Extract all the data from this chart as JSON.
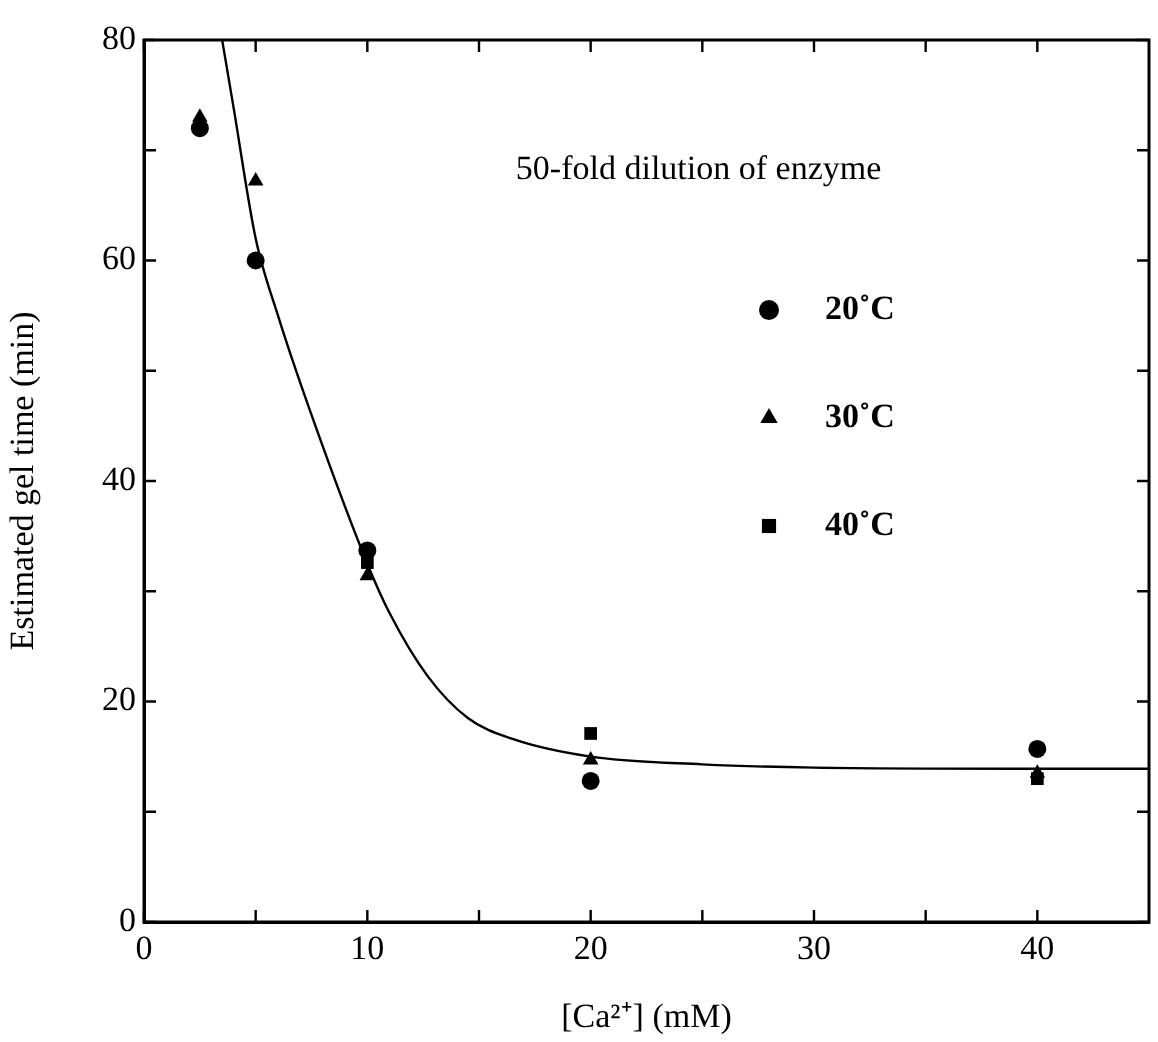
{
  "chart_data": {
    "type": "scatter",
    "xlabel": "[Ca²⁺] (mM)",
    "ylabel": "Estimated gel time (min)",
    "annotations": [
      "50-fold dilution of enzyme"
    ],
    "xlim": [
      0,
      45
    ],
    "ylim": [
      0,
      80
    ],
    "xticks": [
      0,
      {
        "value": 5,
        "label": null
      },
      10,
      {
        "value": 15,
        "label": null
      },
      20,
      {
        "value": 25,
        "label": null
      },
      30,
      {
        "value": 35,
        "label": null
      },
      40
    ],
    "yticks": [
      0,
      {
        "value": 10,
        "label": null
      },
      20,
      {
        "value": 30,
        "label": null
      },
      40,
      {
        "value": 50,
        "label": null
      },
      60,
      {
        "value": 70,
        "label": null
      },
      80
    ],
    "grid": false,
    "legend": "right",
    "series": [
      {
        "name": "20˚C",
        "color": "#000000",
        "marker": "circle",
        "x": [
          2.5,
          5,
          10,
          20,
          40
        ],
        "values": [
          72,
          60,
          33.7,
          12.8,
          15.7
        ]
      },
      {
        "name": "30˚C",
        "color": "#000000",
        "marker": "triangle",
        "x": [
          2.5,
          5,
          10,
          20,
          40
        ],
        "values": [
          73,
          67.2,
          31.4,
          14.7,
          13.5
        ]
      },
      {
        "name": "40˚C",
        "color": "#000000",
        "marker": "square",
        "x": [
          10,
          20,
          40
        ],
        "values": [
          32.6,
          17.1,
          13
        ]
      },
      {
        "type": "line",
        "color": "#000000",
        "marker": "none",
        "line_style": "solid",
        "x": [
          3.5,
          4,
          5,
          6,
          7.5,
          10,
          11,
          12.7,
          14.5,
          16.5,
          20,
          25,
          30,
          40,
          45
        ],
        "values": [
          80,
          74,
          62,
          55,
          46,
          32.5,
          28,
          22.3,
          18.5,
          16.6,
          15,
          14.3,
          14,
          13.9,
          13.9
        ]
      }
    ]
  }
}
